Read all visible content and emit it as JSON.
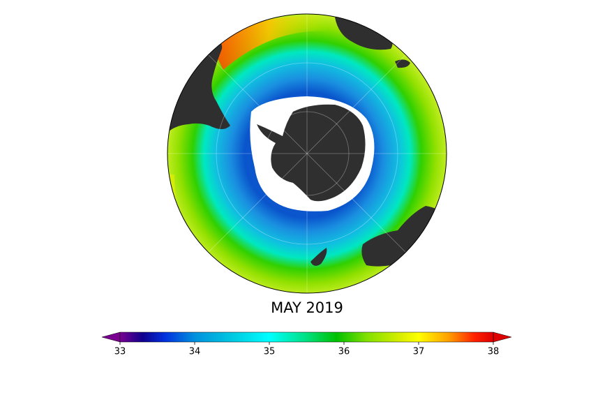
{
  "map": {
    "title": "MAY 2019"
  },
  "colorbar": {
    "lim": [
      33,
      38
    ],
    "ticks": [
      33,
      34,
      35,
      36,
      37,
      38
    ]
  }
}
